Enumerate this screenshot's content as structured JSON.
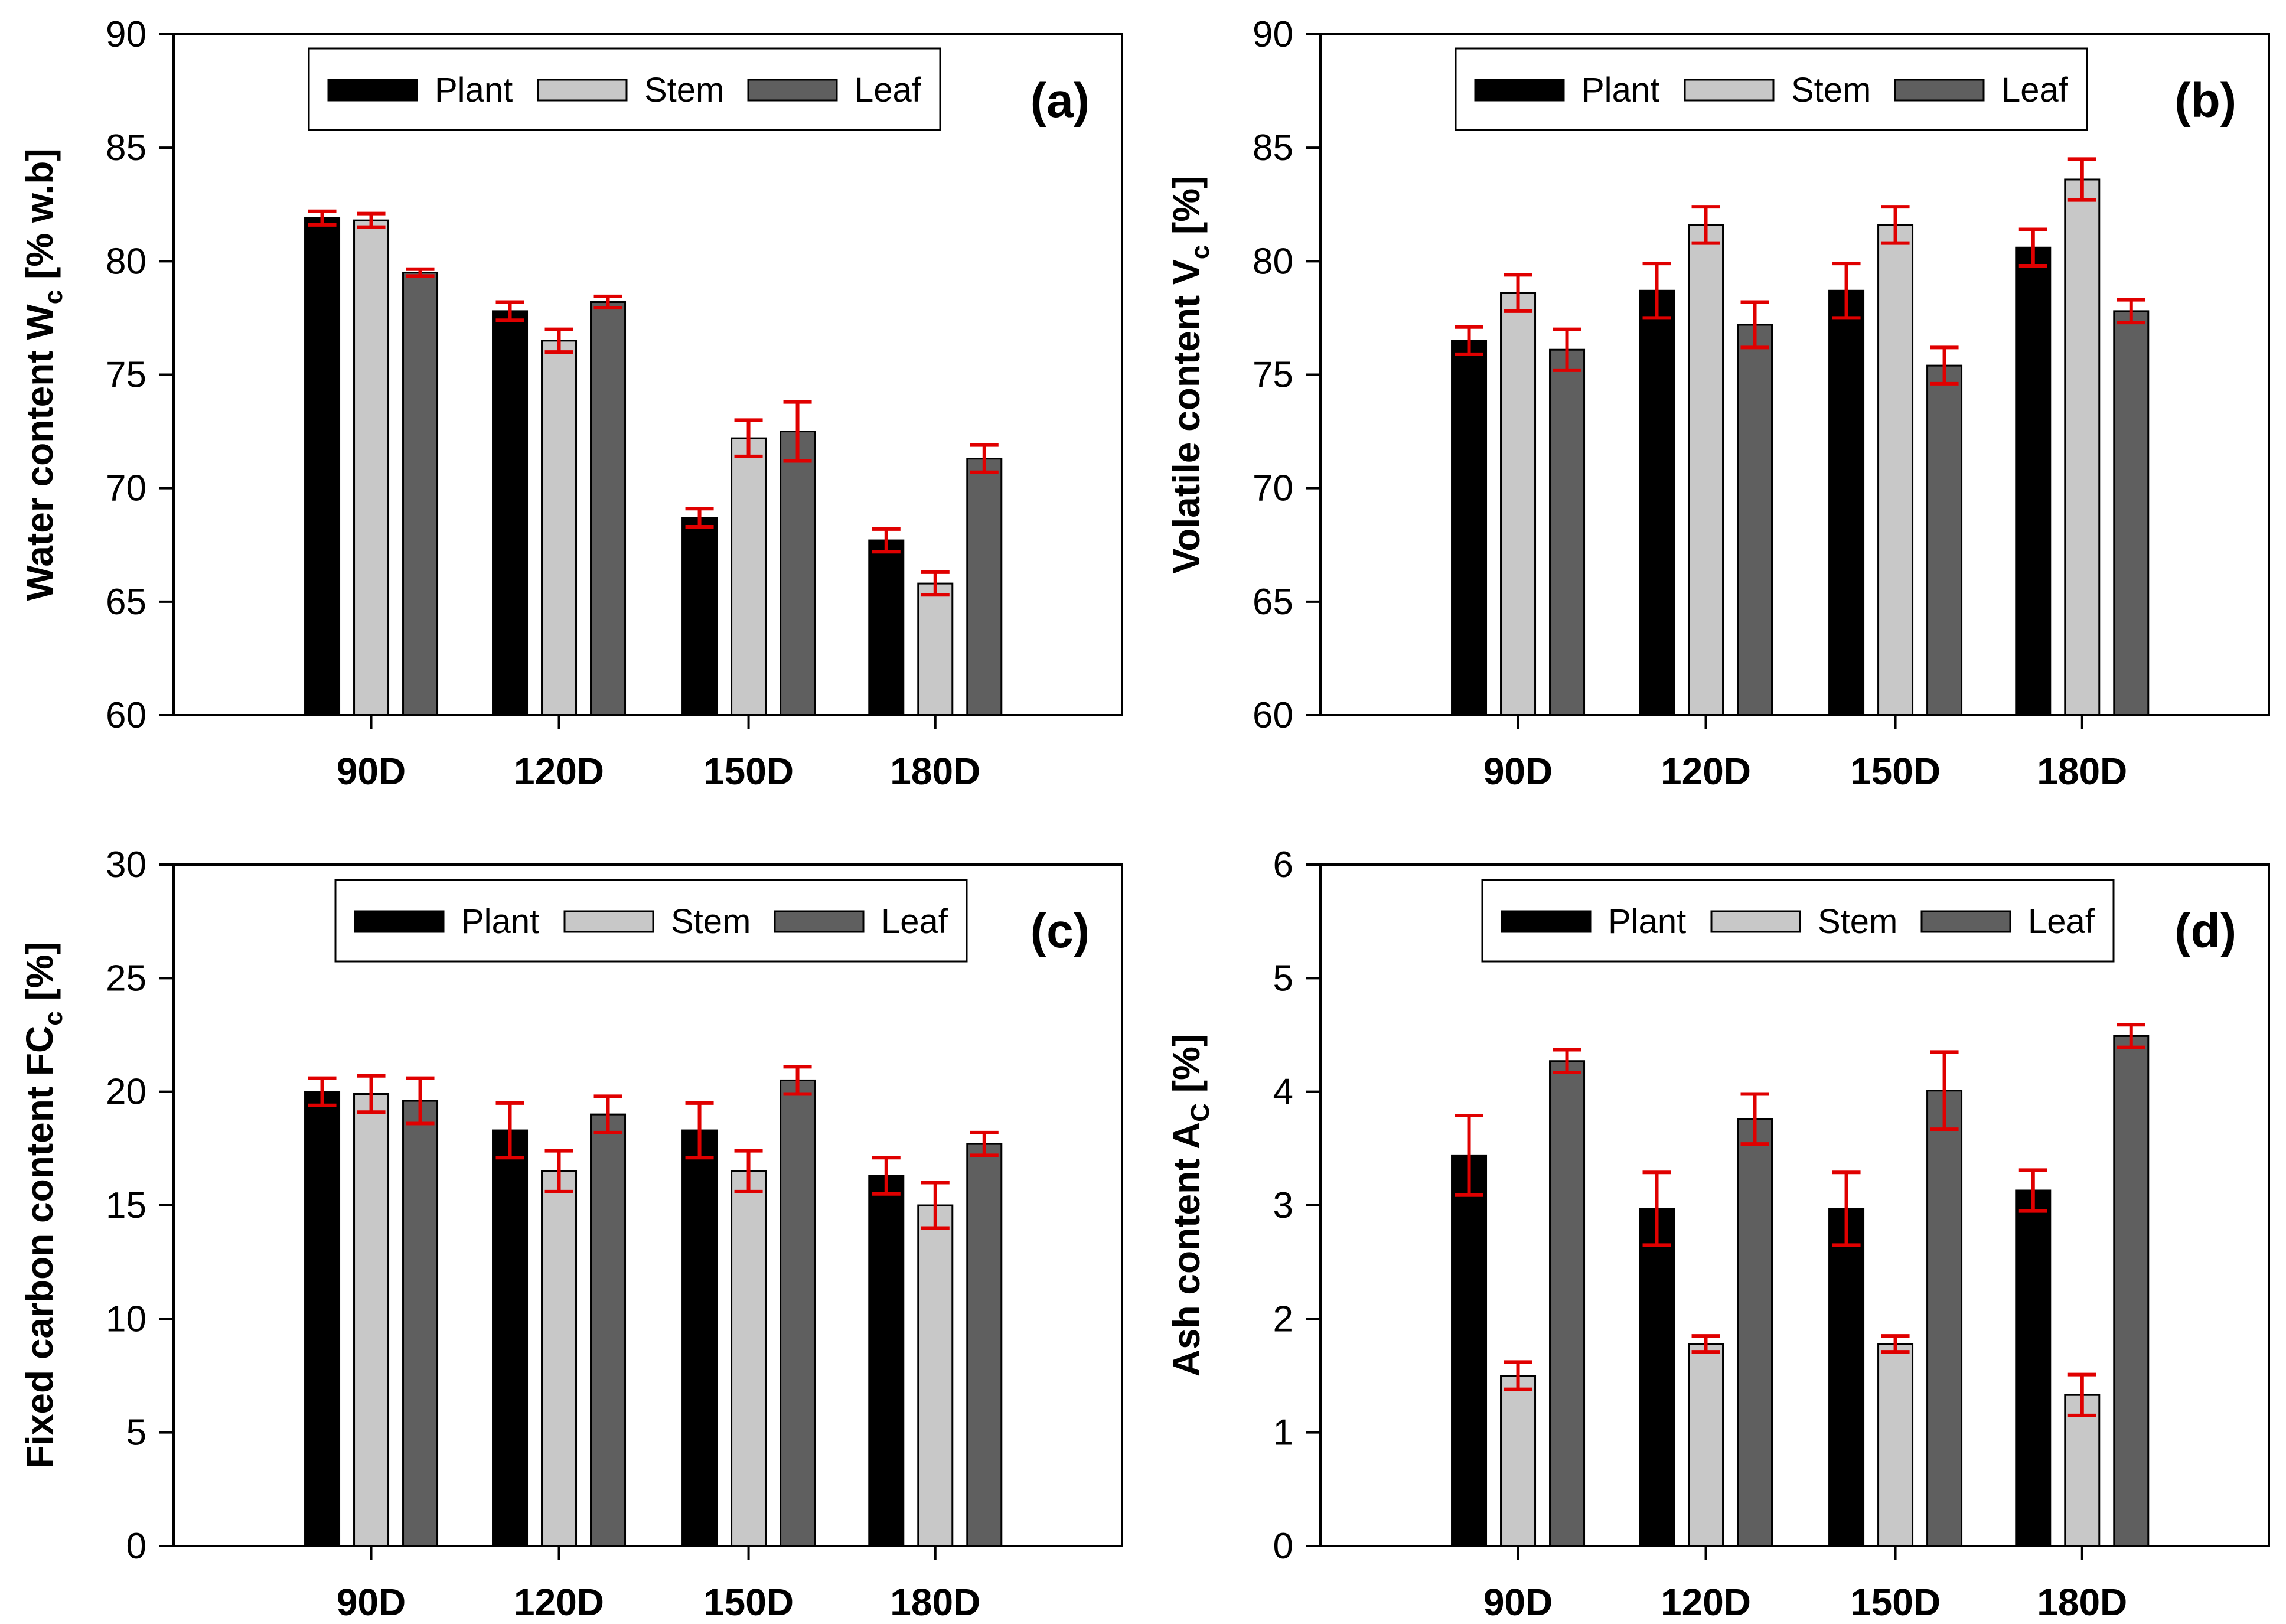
{
  "chart_data": [
    {
      "type": "bar",
      "panel": "(a)",
      "categories": [
        "90D",
        "120D",
        "150D",
        "180D"
      ],
      "ylabel_main": "Water content W",
      "ylabel_sub": "c",
      "ylabel_tail": " [% w.b]",
      "ylim": [
        60,
        90
      ],
      "yticks": [
        60,
        65,
        70,
        75,
        80,
        85,
        90
      ],
      "legend": [
        "Plant",
        "Stem",
        "Leaf"
      ],
      "series": [
        {
          "name": "Plant",
          "values": [
            81.9,
            77.8,
            68.7,
            67.7
          ],
          "errors": [
            0.3,
            0.4,
            0.4,
            0.5
          ]
        },
        {
          "name": "Stem",
          "values": [
            81.8,
            76.5,
            72.2,
            65.8
          ],
          "errors": [
            0.3,
            0.5,
            0.8,
            0.5
          ]
        },
        {
          "name": "Leaf",
          "values": [
            79.5,
            78.2,
            72.5,
            71.3
          ],
          "errors": [
            0.15,
            0.25,
            1.3,
            0.6
          ]
        }
      ]
    },
    {
      "type": "bar",
      "panel": "(b)",
      "categories": [
        "90D",
        "120D",
        "150D",
        "180D"
      ],
      "ylabel_main": "Volatile content V",
      "ylabel_sub": "c",
      "ylabel_tail": " [%]",
      "ylim": [
        60,
        90
      ],
      "yticks": [
        60,
        65,
        70,
        75,
        80,
        85,
        90
      ],
      "legend": [
        "Plant",
        "Stem",
        "Leaf"
      ],
      "series": [
        {
          "name": "Plant",
          "values": [
            76.5,
            78.7,
            78.7,
            80.6
          ],
          "errors": [
            0.6,
            1.2,
            1.2,
            0.8
          ]
        },
        {
          "name": "Stem",
          "values": [
            78.6,
            81.6,
            81.6,
            83.6
          ],
          "errors": [
            0.8,
            0.8,
            0.8,
            0.9
          ]
        },
        {
          "name": "Leaf",
          "values": [
            76.1,
            77.2,
            75.4,
            77.8
          ],
          "errors": [
            0.9,
            1.0,
            0.8,
            0.5
          ]
        }
      ]
    },
    {
      "type": "bar",
      "panel": "(c)",
      "categories": [
        "90D",
        "120D",
        "150D",
        "180D"
      ],
      "ylabel_main": "Fixed carbon content FC",
      "ylabel_sub": "c",
      "ylabel_tail": " [%]",
      "ylim": [
        0,
        30
      ],
      "yticks": [
        0,
        5,
        10,
        15,
        20,
        25,
        30
      ],
      "legend": [
        "Plant",
        "Stem",
        "Leaf"
      ],
      "series": [
        {
          "name": "Plant",
          "values": [
            20.0,
            18.3,
            18.3,
            16.3
          ],
          "errors": [
            0.6,
            1.2,
            1.2,
            0.8
          ]
        },
        {
          "name": "Stem",
          "values": [
            19.9,
            16.5,
            16.5,
            15.0
          ],
          "errors": [
            0.8,
            0.9,
            0.9,
            1.0
          ]
        },
        {
          "name": "Leaf",
          "values": [
            19.6,
            19.0,
            20.5,
            17.7
          ],
          "errors": [
            1.0,
            0.8,
            0.6,
            0.5
          ]
        }
      ]
    },
    {
      "type": "bar",
      "panel": "(d)",
      "categories": [
        "90D",
        "120D",
        "150D",
        "180D"
      ],
      "ylabel_main": "Ash content A",
      "ylabel_sub": "C",
      "ylabel_tail": " [%]",
      "ylim": [
        0,
        6
      ],
      "yticks": [
        0,
        1,
        2,
        3,
        4,
        5,
        6
      ],
      "legend": [
        "Plant",
        "Stem",
        "Leaf"
      ],
      "series": [
        {
          "name": "Plant",
          "values": [
            3.44,
            2.97,
            2.97,
            3.13
          ],
          "errors": [
            0.35,
            0.32,
            0.32,
            0.18
          ]
        },
        {
          "name": "Stem",
          "values": [
            1.5,
            1.78,
            1.78,
            1.33
          ],
          "errors": [
            0.12,
            0.07,
            0.07,
            0.18
          ]
        },
        {
          "name": "Leaf",
          "values": [
            4.27,
            3.76,
            4.01,
            4.49
          ],
          "errors": [
            0.1,
            0.22,
            0.34,
            0.1
          ]
        }
      ]
    }
  ],
  "colors": {
    "plant": "#000000",
    "stem": "#c8c8c8",
    "leaf": "#5f5f5f",
    "error": "#e00000",
    "axis": "#000000"
  }
}
